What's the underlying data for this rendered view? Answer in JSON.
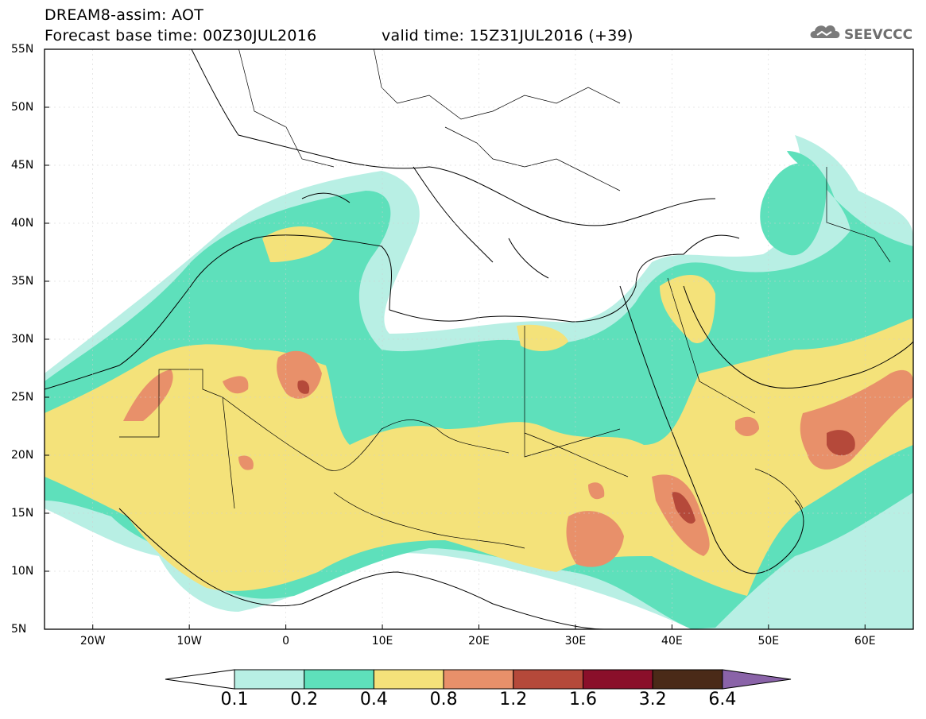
{
  "header": {
    "title_line1": "DREAM8-assim: AOT",
    "title_line2": "Forecast base time: 00Z30JUL2016",
    "valid_time": "valid time: 15Z31JUL2016 (+39)",
    "logo_text": "SEEVCCC"
  },
  "map": {
    "lon_range": [
      -25,
      65
    ],
    "lat_range": [
      5,
      55
    ],
    "lat_ticks": [
      "55N",
      "50N",
      "45N",
      "40N",
      "35N",
      "30N",
      "25N",
      "20N",
      "15N",
      "10N",
      "5N"
    ],
    "lon_ticks": [
      "20W",
      "10W",
      "0",
      "10E",
      "20E",
      "30E",
      "40E",
      "50E",
      "60E"
    ],
    "field": "Aerosol optical thickness (AOT)"
  },
  "colorbar": {
    "levels": [
      "0.1",
      "0.2",
      "0.4",
      "0.8",
      "1.2",
      "1.6",
      "3.2",
      "6.4"
    ],
    "colors": [
      "#ffffff",
      "#b8efe4",
      "#5ee0bb",
      "#f4e27a",
      "#e8906a",
      "#b5493a",
      "#8a0f2a",
      "#4a2a18",
      "#8a63a8"
    ]
  }
}
